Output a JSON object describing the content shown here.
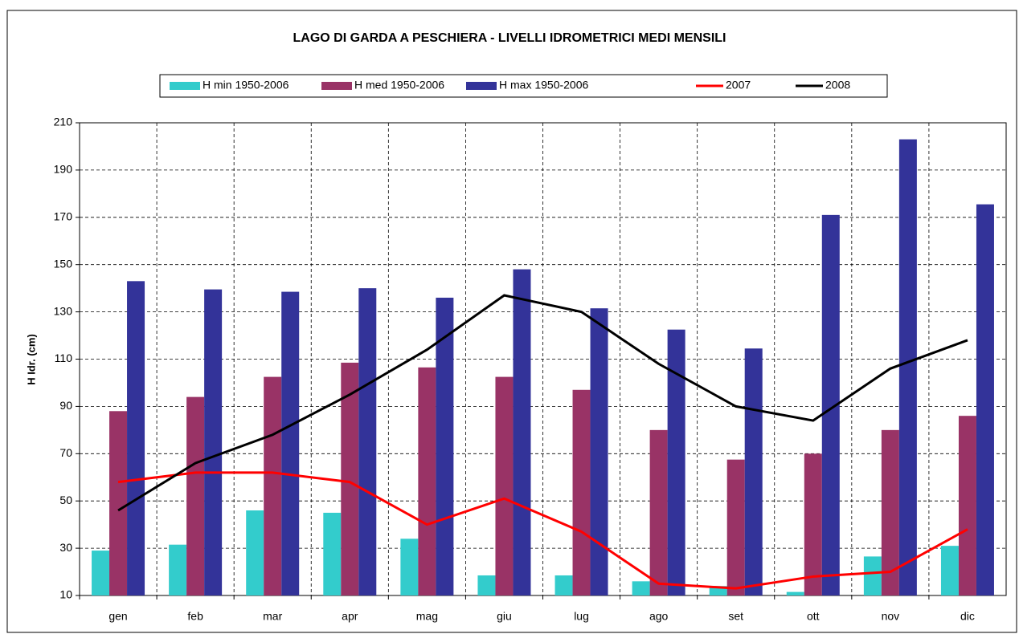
{
  "chart_data": {
    "type": "bar_line",
    "title": "LAGO DI GARDA A PESCHIERA - LIVELLI IDROMETRICI MEDI MENSILI",
    "y_label": "H Idr. (cm)",
    "categories": [
      "gen",
      "feb",
      "mar",
      "apr",
      "mag",
      "giu",
      "lug",
      "ago",
      "set",
      "ott",
      "nov",
      "dic"
    ],
    "series": [
      {
        "name": "H min 1950-2006",
        "kind": "bar",
        "color": "#33CCCC",
        "values": [
          29,
          31.5,
          46,
          45,
          34,
          18.5,
          18.5,
          16,
          14,
          11.5,
          26.5,
          31
        ]
      },
      {
        "name": "H med 1950-2006",
        "kind": "bar",
        "color": "#993366",
        "values": [
          88,
          94,
          102.5,
          108.5,
          106.5,
          102.5,
          97,
          80,
          67.5,
          70,
          80,
          86
        ]
      },
      {
        "name": "H max 1950-2006",
        "kind": "bar",
        "color": "#333399",
        "values": [
          143,
          139.5,
          138.5,
          140,
          136,
          148,
          131.5,
          122.5,
          114.5,
          171,
          203,
          175.5
        ]
      },
      {
        "name": "2007",
        "kind": "line",
        "color": "#FF0000",
        "values": [
          58,
          62,
          62,
          58,
          40,
          51,
          37,
          15,
          13,
          18,
          20,
          38
        ]
      },
      {
        "name": "2008",
        "kind": "line",
        "color": "#000000",
        "values": [
          46,
          66,
          78,
          95,
          114,
          137,
          130,
          108,
          90,
          84,
          106,
          118
        ]
      }
    ],
    "ylim": [
      10,
      210
    ],
    "yticks": [
      10,
      30,
      50,
      70,
      90,
      110,
      130,
      150,
      170,
      190,
      210
    ],
    "grid": true
  }
}
